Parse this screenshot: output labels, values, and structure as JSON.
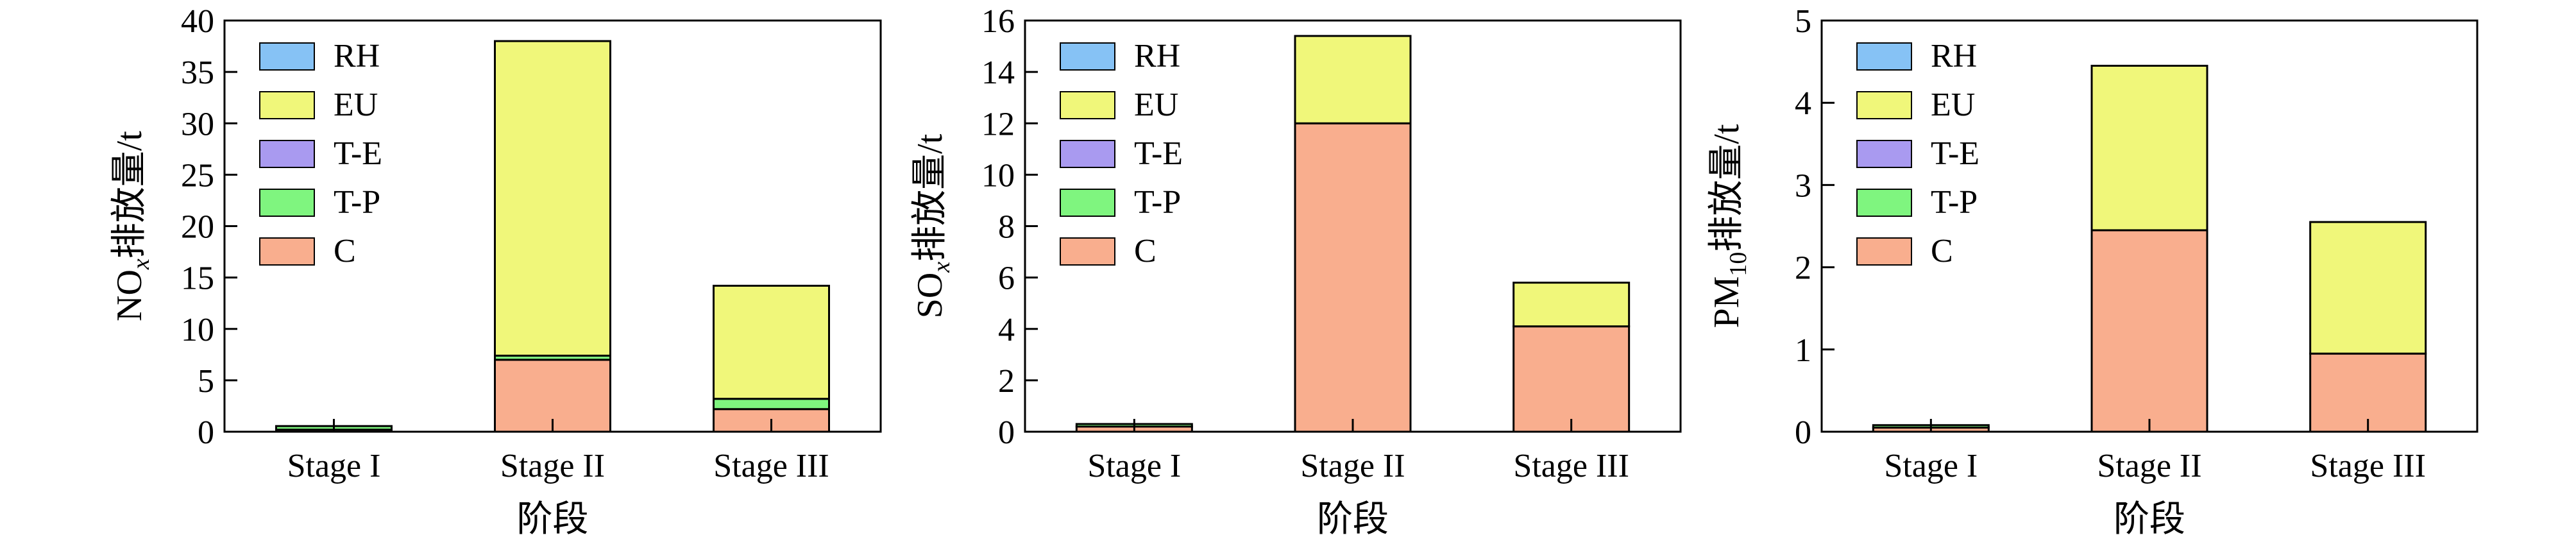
{
  "stack_order": [
    "C",
    "T-P",
    "T-E",
    "EU",
    "RH"
  ],
  "legend_order": [
    "RH",
    "EU",
    "T-E",
    "T-P",
    "C"
  ],
  "colors": {
    "C": "#f9ae8e",
    "T-P": "#7ff57f",
    "T-E": "#a99af0",
    "EU": "#f0f77a",
    "RH": "#86c2f5"
  },
  "chart_data": [
    {
      "type": "bar",
      "stacked": true,
      "categories": [
        "Stage I",
        "Stage II",
        "Stage III"
      ],
      "xlabel": "阶段",
      "ylabel": {
        "main": "NO",
        "sub": "x",
        "suffix": "排放量/t"
      },
      "ylim": [
        0,
        40
      ],
      "yticks": [
        0,
        5,
        10,
        15,
        20,
        25,
        30,
        35,
        40
      ],
      "legend": "top-left",
      "series": [
        {
          "name": "C",
          "values": [
            0.2,
            7.0,
            2.2
          ]
        },
        {
          "name": "T-P",
          "values": [
            0.35,
            0.4,
            1.0
          ]
        },
        {
          "name": "T-E",
          "values": [
            0.0,
            0.0,
            0.0
          ]
        },
        {
          "name": "EU",
          "values": [
            0.0,
            30.6,
            11.0
          ]
        },
        {
          "name": "RH",
          "values": [
            0.0,
            0.0,
            0.0
          ]
        }
      ]
    },
    {
      "type": "bar",
      "stacked": true,
      "categories": [
        "Stage I",
        "Stage II",
        "Stage III"
      ],
      "xlabel": "阶段",
      "ylabel": {
        "main": "SO",
        "sub": "x",
        "suffix": "排放量/t"
      },
      "ylim": [
        0,
        16
      ],
      "yticks": [
        0,
        2,
        4,
        6,
        8,
        10,
        12,
        14,
        16
      ],
      "legend": "top-left",
      "series": [
        {
          "name": "C",
          "values": [
            0.2,
            12.0,
            4.1
          ]
        },
        {
          "name": "T-P",
          "values": [
            0.1,
            0.0,
            0.0
          ]
        },
        {
          "name": "T-E",
          "values": [
            0.0,
            0.0,
            0.0
          ]
        },
        {
          "name": "EU",
          "values": [
            0.0,
            3.4,
            1.7
          ]
        },
        {
          "name": "RH",
          "values": [
            0.0,
            0.0,
            0.0
          ]
        }
      ]
    },
    {
      "type": "bar",
      "stacked": true,
      "categories": [
        "Stage I",
        "Stage II",
        "Stage III"
      ],
      "xlabel": "阶段",
      "ylabel": {
        "main": "PM",
        "sub": "10",
        "suffix": "排放量/t"
      },
      "ylim": [
        0,
        5
      ],
      "yticks": [
        0,
        1,
        2,
        3,
        4,
        5
      ],
      "legend": "top-left",
      "series": [
        {
          "name": "C",
          "values": [
            0.05,
            2.45,
            0.95
          ]
        },
        {
          "name": "T-P",
          "values": [
            0.03,
            0.0,
            0.0
          ]
        },
        {
          "name": "T-E",
          "values": [
            0.0,
            0.0,
            0.0
          ]
        },
        {
          "name": "EU",
          "values": [
            0.0,
            2.0,
            1.6
          ]
        },
        {
          "name": "RH",
          "values": [
            0.0,
            0.0,
            0.0
          ]
        }
      ]
    }
  ]
}
